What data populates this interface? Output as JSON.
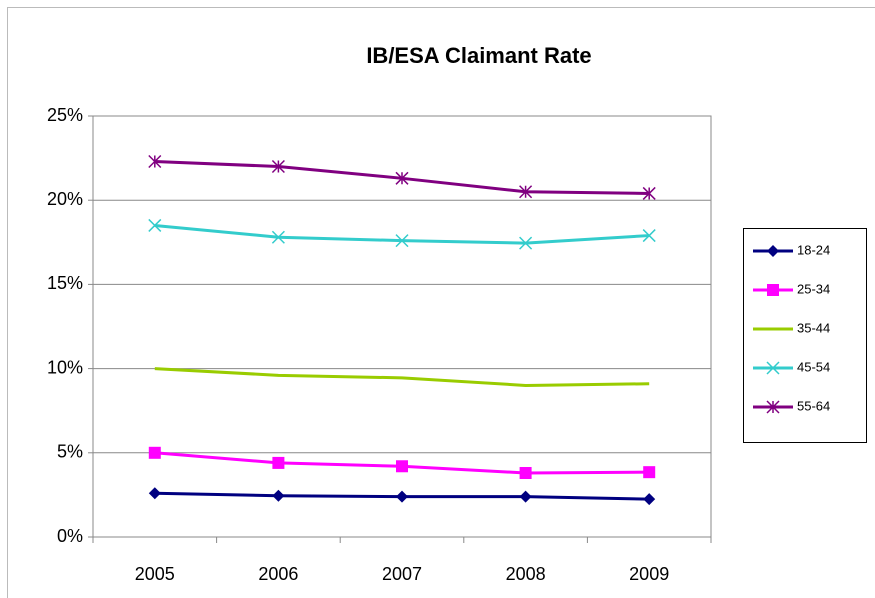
{
  "chart_data": {
    "type": "line",
    "title": "IB/ESA Claimant Rate",
    "categories": [
      "2005",
      "2006",
      "2007",
      "2008",
      "2009"
    ],
    "series": [
      {
        "name": "18-24",
        "color": "#000080",
        "marker": "diamond",
        "values": [
          2.6,
          2.45,
          2.4,
          2.4,
          2.25
        ]
      },
      {
        "name": "25-34",
        "color": "#FF00FF",
        "marker": "square",
        "values": [
          5.0,
          4.4,
          4.2,
          3.8,
          3.85
        ]
      },
      {
        "name": "35-44",
        "color": "#99CC00",
        "marker": "none",
        "values": [
          10.0,
          9.6,
          9.45,
          9.0,
          9.1
        ]
      },
      {
        "name": "45-54",
        "color": "#33CCCC",
        "marker": "x",
        "values": [
          18.5,
          17.8,
          17.6,
          17.45,
          17.9
        ]
      },
      {
        "name": "55-64",
        "color": "#800080",
        "marker": "star",
        "values": [
          22.3,
          22.0,
          21.3,
          20.5,
          20.4
        ]
      }
    ],
    "ylim": [
      0,
      25
    ],
    "yticks": [
      {
        "value": 0,
        "label": "0%"
      },
      {
        "value": 5,
        "label": "5%"
      },
      {
        "value": 10,
        "label": "10%"
      },
      {
        "value": 15,
        "label": "15%"
      },
      {
        "value": 20,
        "label": "20%"
      },
      {
        "value": 25,
        "label": "25%"
      }
    ],
    "grid": true,
    "legend": "right"
  }
}
